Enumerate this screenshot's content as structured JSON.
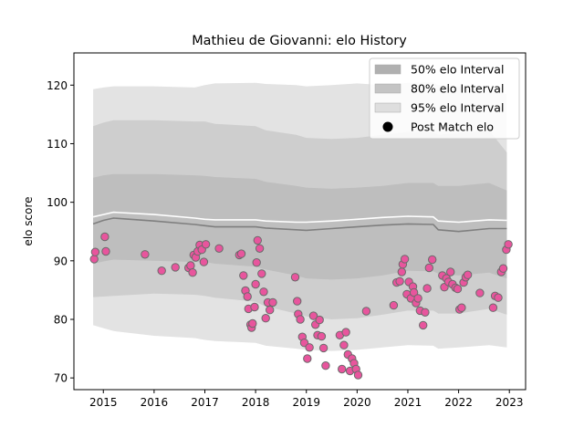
{
  "chart_data": {
    "type": "scatter",
    "title": "Mathieu de Giovanni: elo History",
    "xlabel": "",
    "ylabel": "elo score",
    "xlim": [
      2014.42,
      2023.32
    ],
    "ylim": [
      68.0,
      125.5
    ],
    "x_ticks": [
      2015,
      2016,
      2017,
      2018,
      2019,
      2020,
      2021,
      2022,
      2023
    ],
    "x_tick_labels": [
      "2015",
      "2016",
      "2017",
      "2018",
      "2019",
      "2020",
      "2021",
      "2022",
      "2023"
    ],
    "y_ticks": [
      70,
      80,
      90,
      100,
      110,
      120
    ],
    "y_tick_labels": [
      "70",
      "80",
      "90",
      "100",
      "110",
      "120"
    ],
    "grid": false,
    "legend_position": "top-right",
    "colors": {
      "band_95": "#e3e3e3",
      "band_80": "#cecece",
      "band_50": "#bebebe",
      "median_line": "#7f7f7f",
      "mean_line": "#ffffff",
      "point_fill": "#e8559d",
      "point_edge": "#6a6a6a"
    },
    "legend": [
      {
        "label": "50% elo Interval",
        "kind": "band",
        "color": "#b0b0b0"
      },
      {
        "label": "80% elo Interval",
        "kind": "band",
        "color": "#c4c4c4"
      },
      {
        "label": "95% elo Interval",
        "kind": "band",
        "color": "#dedede"
      },
      {
        "label": "Post Match elo",
        "kind": "marker",
        "color": "#000000"
      }
    ],
    "bands": {
      "x": [
        2014.8,
        2015.0,
        2015.2,
        2016.0,
        2016.8,
        2017.0,
        2017.2,
        2018.0,
        2018.2,
        2018.8,
        2019.0,
        2019.5,
        2020.0,
        2020.5,
        2021.0,
        2021.5,
        2021.6,
        2022.0,
        2022.6,
        2022.95
      ],
      "p95_low": [
        79.0,
        78.5,
        78.0,
        77.2,
        76.8,
        76.5,
        76.3,
        76.0,
        75.5,
        75.0,
        74.8,
        74.6,
        74.8,
        75.2,
        75.6,
        75.5,
        75.0,
        75.2,
        75.6,
        75.2
      ],
      "p95_high": [
        119.3,
        119.6,
        119.8,
        119.8,
        119.6,
        120.0,
        120.3,
        120.4,
        120.2,
        120.0,
        119.8,
        120.0,
        120.3,
        120.0,
        120.4,
        120.5,
        120.0,
        119.8,
        119.5,
        118.4
      ],
      "p80_low": [
        83.8,
        83.9,
        84.0,
        84.4,
        84.2,
        84.0,
        83.7,
        83.0,
        82.2,
        81.0,
        80.5,
        80.0,
        80.2,
        80.8,
        81.5,
        81.5,
        81.0,
        81.0,
        81.8,
        80.8
      ],
      "p80_high": [
        113.0,
        113.6,
        114.0,
        114.0,
        113.8,
        113.8,
        113.4,
        113.0,
        112.3,
        111.5,
        111.0,
        110.8,
        111.0,
        111.5,
        112.0,
        112.0,
        111.5,
        111.8,
        112.3,
        108.5
      ],
      "p50_low": [
        89.5,
        89.9,
        90.2,
        90.0,
        89.8,
        89.8,
        89.5,
        89.0,
        88.5,
        87.5,
        87.0,
        86.8,
        87.0,
        87.5,
        88.3,
        88.2,
        87.8,
        87.5,
        88.0,
        87.0
      ],
      "p50_high": [
        104.2,
        104.6,
        104.8,
        104.8,
        104.6,
        104.5,
        104.3,
        104.0,
        103.5,
        102.8,
        102.5,
        102.3,
        102.5,
        102.8,
        103.3,
        103.3,
        102.8,
        102.8,
        103.3,
        102.0
      ],
      "median": [
        96.3,
        96.9,
        97.3,
        96.8,
        96.2,
        96.0,
        95.8,
        95.8,
        95.6,
        95.3,
        95.2,
        95.5,
        95.8,
        96.1,
        96.3,
        96.2,
        95.3,
        95.0,
        95.5,
        95.5
      ],
      "mean": [
        97.5,
        97.9,
        98.3,
        97.9,
        97.3,
        97.1,
        97.0,
        97.0,
        96.8,
        96.6,
        96.6,
        96.8,
        97.1,
        97.4,
        97.6,
        97.5,
        96.8,
        96.6,
        97.0,
        96.9
      ]
    },
    "points": {
      "x": [
        2014.82,
        2014.84,
        2015.03,
        2015.05,
        2015.82,
        2016.15,
        2016.42,
        2016.68,
        2016.72,
        2016.76,
        2016.78,
        2016.82,
        2016.86,
        2016.9,
        2016.94,
        2016.98,
        2017.02,
        2017.28,
        2017.68,
        2017.72,
        2017.76,
        2017.8,
        2017.84,
        2017.86,
        2017.9,
        2017.92,
        2017.94,
        2017.98,
        2018.0,
        2018.02,
        2018.04,
        2018.08,
        2018.12,
        2018.16,
        2018.2,
        2018.24,
        2018.28,
        2018.34,
        2018.78,
        2018.82,
        2018.84,
        2018.88,
        2018.92,
        2018.96,
        2019.02,
        2019.06,
        2019.14,
        2019.18,
        2019.22,
        2019.26,
        2019.3,
        2019.34,
        2019.38,
        2019.66,
        2019.7,
        2019.74,
        2019.78,
        2019.82,
        2019.86,
        2019.9,
        2019.94,
        2019.98,
        2020.02,
        2020.18,
        2020.72,
        2020.78,
        2020.84,
        2020.88,
        2020.9,
        2020.94,
        2020.98,
        2021.02,
        2021.06,
        2021.1,
        2021.12,
        2021.16,
        2021.2,
        2021.24,
        2021.3,
        2021.34,
        2021.38,
        2021.42,
        2021.48,
        2021.68,
        2021.72,
        2021.76,
        2021.8,
        2021.84,
        2021.88,
        2021.94,
        2021.98,
        2022.02,
        2022.06,
        2022.1,
        2022.14,
        2022.18,
        2022.42,
        2022.68,
        2022.72,
        2022.78,
        2022.84,
        2022.88,
        2022.94,
        2022.98
      ],
      "y": [
        90.3,
        91.5,
        94.1,
        91.6,
        91.1,
        88.3,
        88.9,
        88.8,
        89.2,
        88.0,
        91.0,
        90.6,
        91.6,
        92.7,
        91.9,
        89.8,
        92.8,
        92.1,
        91.0,
        91.2,
        87.5,
        84.9,
        83.9,
        81.8,
        79.1,
        78.6,
        79.3,
        82.1,
        86.0,
        89.7,
        93.5,
        92.1,
        87.8,
        84.7,
        80.2,
        82.9,
        81.6,
        82.9,
        87.2,
        83.1,
        80.9,
        80.0,
        77.0,
        76.0,
        73.3,
        75.2,
        80.6,
        79.1,
        77.3,
        79.9,
        77.1,
        75.1,
        72.1,
        77.3,
        71.5,
        75.6,
        77.8,
        74.0,
        71.2,
        73.3,
        72.5,
        71.5,
        70.5,
        81.4,
        82.4,
        86.3,
        86.5,
        88.1,
        89.4,
        90.3,
        84.3,
        86.4,
        83.6,
        85.6,
        84.6,
        82.8,
        83.6,
        81.5,
        79.0,
        81.2,
        85.3,
        88.8,
        90.2,
        87.5,
        85.5,
        87.0,
        86.4,
        88.1,
        86.0,
        85.4,
        85.2,
        81.7,
        82.0,
        86.3,
        87.2,
        87.6,
        84.5,
        82.0,
        84.0,
        83.7,
        88.1,
        88.7,
        91.9,
        92.8
      ]
    }
  }
}
